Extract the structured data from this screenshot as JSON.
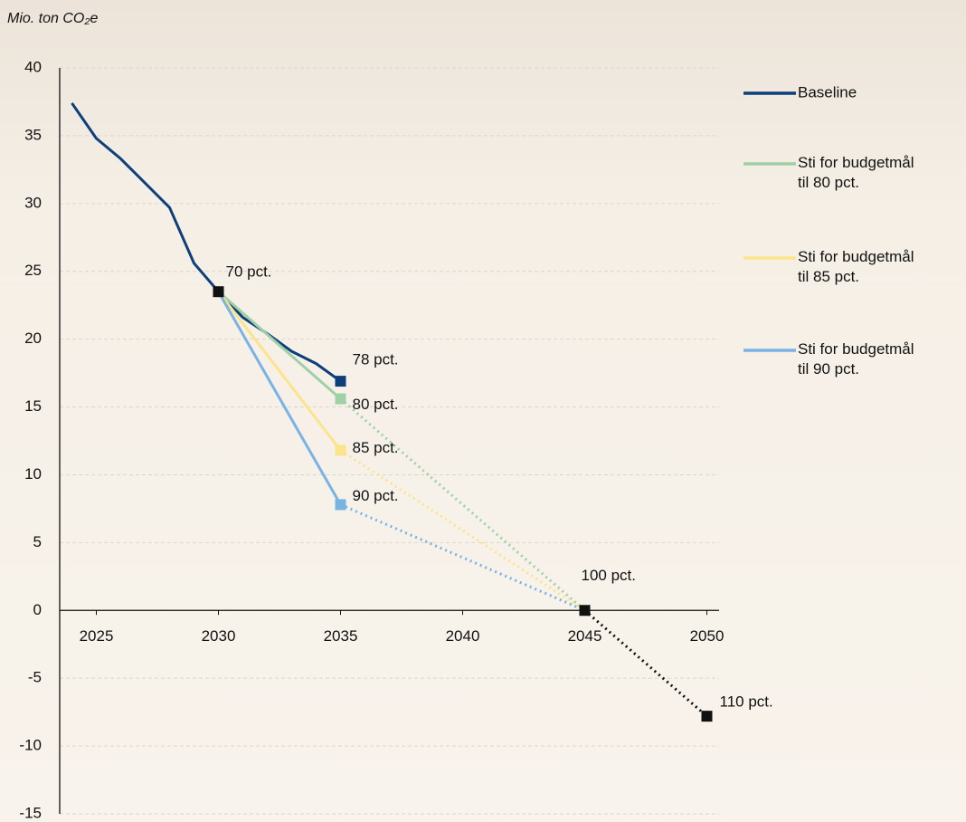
{
  "chart_data": {
    "type": "line",
    "y_axis_label": "Mio. ton CO₂e",
    "xlim": [
      2023.5,
      2050.5
    ],
    "xticks": [
      2025,
      2030,
      2035,
      2040,
      2045,
      2050
    ],
    "ylim": [
      -15,
      40
    ],
    "yticks": [
      -15,
      -10,
      -5,
      0,
      5,
      10,
      15,
      20,
      25,
      30,
      35,
      40
    ],
    "grid": true,
    "legend": "right",
    "series": [
      {
        "name": "Baseline",
        "color": "#0d3f7a",
        "x": [
          2024,
          2025,
          2026,
          2027,
          2028,
          2029,
          2030,
          2031,
          2032,
          2033,
          2034,
          2035
        ],
        "values": [
          37.4,
          34.8,
          33.3,
          31.5,
          29.7,
          25.6,
          23.5,
          21.6,
          20.4,
          19.1,
          18.2,
          16.9
        ],
        "segment_styles": [
          "solid",
          "solid",
          "solid",
          "solid",
          "solid",
          "solid",
          "solid",
          "solid",
          "solid",
          "solid",
          "solid"
        ]
      },
      {
        "name": "Sti for budgetmål til 80 pct.",
        "color": "#9fd0a6",
        "x": [
          2030,
          2035,
          2045
        ],
        "values": [
          23.5,
          15.6,
          0
        ],
        "segment_styles": [
          "solid",
          "dotted"
        ]
      },
      {
        "name": "Sti for budgetmål til 85 pct.",
        "color": "#fbe48a",
        "x": [
          2030,
          2035,
          2045
        ],
        "values": [
          23.5,
          11.8,
          0
        ],
        "segment_styles": [
          "solid",
          "dotted"
        ]
      },
      {
        "name": "Sti for budgetmål til 90 pct.",
        "color": "#79b3e4",
        "x": [
          2030,
          2035,
          2045
        ],
        "values": [
          23.5,
          7.8,
          0
        ],
        "segment_styles": [
          "solid",
          "dotted"
        ]
      },
      {
        "color": "#111111",
        "x": [
          2045,
          2050
        ],
        "values": [
          0,
          -7.8
        ],
        "segment_styles": [
          "dotted"
        ]
      }
    ],
    "annotations": [
      {
        "text": "70 pct.",
        "x": 2030,
        "y": 23.5,
        "color": "#111111"
      },
      {
        "text": "78 pct.",
        "x": 2035,
        "y": 16.9,
        "color": "#0d3f7a"
      },
      {
        "text": "80 pct.",
        "x": 2035,
        "y": 15.6,
        "color": "#9fd0a6"
      },
      {
        "text": "85 pct.",
        "x": 2035,
        "y": 11.8,
        "color": "#fbe48a"
      },
      {
        "text": "90 pct.",
        "x": 2035,
        "y": 7.8,
        "color": "#79b3e4"
      },
      {
        "text": "100 pct.",
        "x": 2045,
        "y": 0,
        "color": "#111111"
      },
      {
        "text": "110 pct.",
        "x": 2050,
        "y": -7.8,
        "color": "#111111"
      }
    ]
  }
}
